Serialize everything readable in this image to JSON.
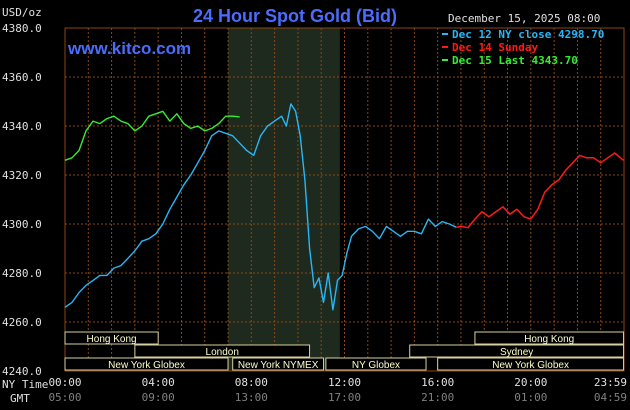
{
  "header": {
    "title": "24 Hour Spot Gold (Bid)",
    "brand": "www.kitco.com",
    "date": "December 15, 2025 08:00",
    "unit": "USD/oz"
  },
  "footer": {
    "row1_label": "NY Time",
    "row2_label": "GMT"
  },
  "colors": {
    "background": "#000000",
    "frame": "#8b4513",
    "grid": "#8b4513",
    "shaded_session": "#1e2a1e",
    "series_dec12": "#29b6f6",
    "series_dec14": "#ff1a1a",
    "series_dec15": "#33ee33",
    "market_bar_fill": "#000000",
    "market_bar_stroke": "#d8d0a0"
  },
  "markets": [
    {
      "label": "Hong Kong",
      "start_hour": 0,
      "end_hour": 4.0,
      "row": 0
    },
    {
      "label": "London",
      "start_hour": 3.0,
      "end_hour": 10.5,
      "row": 1
    },
    {
      "label": "New York Globex",
      "start_hour": 0,
      "end_hour": 7.0,
      "row": 2
    },
    {
      "label": "New York NYMEX",
      "start_hour": 7.2,
      "end_hour": 11.1,
      "row": 2
    },
    {
      "label": "NY Globex",
      "start_hour": 11.2,
      "end_hour": 15.5,
      "row": 2
    },
    {
      "label": "Hong Kong",
      "start_hour": 17.6,
      "end_hour": 23.98,
      "row": 0
    },
    {
      "label": "Sydney",
      "start_hour": 14.8,
      "end_hour": 23.98,
      "row": 1
    },
    {
      "label": "New York Globex",
      "start_hour": 16.0,
      "end_hour": 23.98,
      "row": 2
    }
  ],
  "chart_data": {
    "type": "line",
    "title": "24 Hour Spot Gold (Bid)",
    "ylabel": "USD/oz",
    "ylim": [
      4240,
      4380
    ],
    "yticks": [
      "4240.0",
      "4260.0",
      "4280.0",
      "4300.0",
      "4320.0",
      "4340.0",
      "4360.0",
      "4380.0"
    ],
    "xlim": [
      0,
      24
    ],
    "xticks_ny": [
      "00:00",
      "04:00",
      "08:00",
      "12:00",
      "16:00",
      "20:00",
      "23:59"
    ],
    "xticks_gmt": [
      "05:00",
      "09:00",
      "13:00",
      "17:00",
      "21:00",
      "01:00",
      "04:59"
    ],
    "x_unit": "hours after 00:00 NY time",
    "grid": true,
    "shaded_session": [
      7.0,
      11.8
    ],
    "legend_position": "top-right",
    "series": [
      {
        "name": "Dec 12 NY close 4298.70",
        "x": [
          0.0,
          0.3,
          0.6,
          0.9,
          1.2,
          1.5,
          1.8,
          2.1,
          2.4,
          2.7,
          3.0,
          3.3,
          3.6,
          3.9,
          4.2,
          4.5,
          4.8,
          5.1,
          5.4,
          5.7,
          6.0,
          6.3,
          6.6,
          6.9,
          7.2,
          7.5,
          7.8,
          8.1,
          8.4,
          8.7,
          9.0,
          9.3,
          9.5,
          9.7,
          9.9,
          10.1,
          10.3,
          10.5,
          10.7,
          10.9,
          11.1,
          11.3,
          11.5,
          11.7,
          11.9,
          12.1,
          12.3,
          12.6,
          12.9,
          13.2,
          13.5,
          13.8,
          14.1,
          14.4,
          14.7,
          15.0,
          15.3,
          15.6,
          15.9,
          16.2,
          16.5,
          16.8
        ],
        "values": [
          4266,
          4268,
          4272,
          4275,
          4277,
          4279,
          4279,
          4282,
          4283,
          4286,
          4289,
          4293,
          4294,
          4296,
          4300,
          4306,
          4311,
          4316,
          4320,
          4325,
          4330,
          4336,
          4338,
          4337,
          4336,
          4333,
          4330,
          4328,
          4336,
          4340,
          4342,
          4344,
          4340,
          4349,
          4346,
          4336,
          4318,
          4290,
          4274,
          4278,
          4268,
          4280,
          4265,
          4277,
          4279,
          4288,
          4295,
          4298,
          4299,
          4297,
          4294,
          4299,
          4297,
          4295,
          4297,
          4297,
          4296,
          4302,
          4299,
          4301,
          4300,
          4298.7
        ]
      },
      {
        "name": "Dec 14 Sunday",
        "x": [
          16.8,
          17.0,
          17.3,
          17.6,
          17.9,
          18.2,
          18.5,
          18.8,
          19.1,
          19.4,
          19.7,
          20.0,
          20.3,
          20.6,
          20.9,
          21.2,
          21.5,
          21.8,
          22.1,
          22.4,
          22.7,
          23.0,
          23.3,
          23.6,
          23.98
        ],
        "values": [
          4298.7,
          4299,
          4298.5,
          4302,
          4305,
          4303,
          4305,
          4307,
          4304,
          4306,
          4303,
          4302,
          4306,
          4313,
          4316,
          4318,
          4322,
          4325,
          4328,
          4327,
          4327,
          4325,
          4327,
          4329,
          4326
        ]
      },
      {
        "name": "Dec 15 Last 4343.70",
        "x": [
          0.0,
          0.3,
          0.6,
          0.9,
          1.2,
          1.5,
          1.8,
          2.1,
          2.4,
          2.7,
          3.0,
          3.3,
          3.6,
          3.9,
          4.2,
          4.5,
          4.8,
          5.1,
          5.4,
          5.7,
          6.0,
          6.3,
          6.6,
          6.9,
          7.2,
          7.5
        ],
        "values": [
          4326,
          4327,
          4330,
          4338,
          4342,
          4341,
          4343,
          4344,
          4342,
          4341,
          4338,
          4340,
          4344,
          4345,
          4346,
          4342,
          4345,
          4341,
          4339,
          4340,
          4338,
          4339,
          4341,
          4344,
          4344,
          4343.7
        ]
      }
    ]
  }
}
